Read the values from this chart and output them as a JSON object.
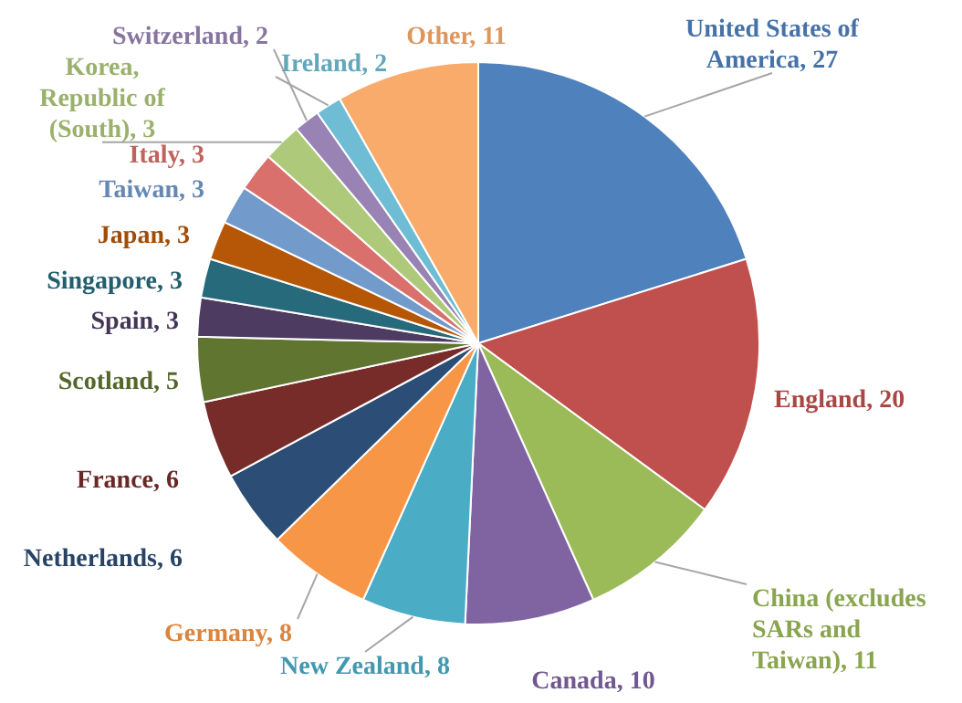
{
  "chart_data": {
    "type": "pie",
    "categories": [
      "United States of America",
      "England",
      "China (excludes SARs and Taiwan)",
      "Canada",
      "New Zealand",
      "Germany",
      "Netherlands",
      "France",
      "Scotland",
      "Spain",
      "Singapore",
      "Japan",
      "Taiwan",
      "Italy",
      "Korea, Republic of (South)",
      "Switzerland",
      "Ireland",
      "Other"
    ],
    "values": [
      27,
      20,
      11,
      10,
      8,
      8,
      6,
      6,
      5,
      3,
      3,
      3,
      3,
      3,
      3,
      2,
      2,
      11
    ],
    "value_labels": [
      ", 27",
      ", 20",
      ", 11",
      ", 10",
      ", 8",
      ", 8",
      ", 6",
      ", 6",
      ", 5",
      ", 3",
      ", 3",
      ", 3",
      ", 3",
      ", 3",
      ", 3",
      ", 2",
      ", 2",
      ", 11"
    ],
    "colors": [
      "#4f81bd",
      "#c0504d",
      "#9bbb59",
      "#8064a2",
      "#4bacc6",
      "#f79646",
      "#2c4d75",
      "#772c2a",
      "#5f7530",
      "#4d3b62",
      "#276a7c",
      "#b65708",
      "#729aca",
      "#d9706c",
      "#afc97a",
      "#9983b5",
      "#6fbdd4",
      "#f9ab6b"
    ]
  }
}
